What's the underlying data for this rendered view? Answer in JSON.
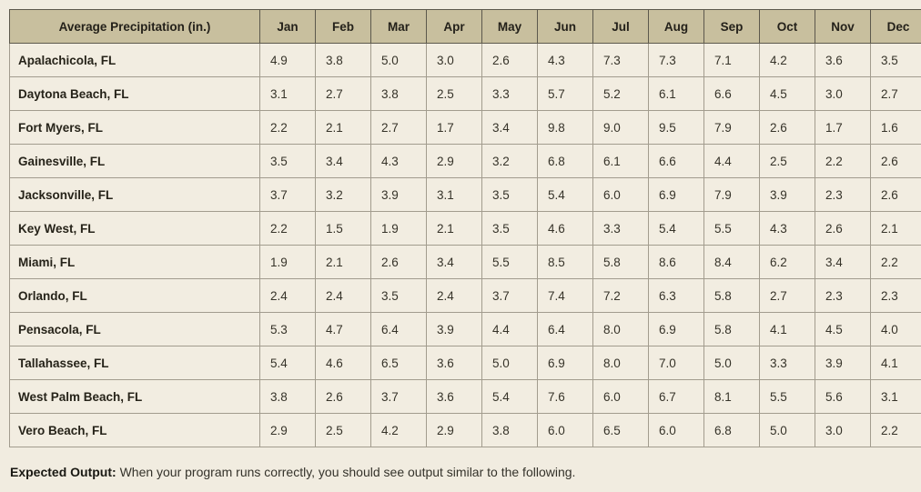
{
  "chart_data": {
    "type": "table",
    "header_label": "Average Precipitation (in.)",
    "months": [
      "Jan",
      "Feb",
      "Mar",
      "Apr",
      "May",
      "Jun",
      "Jul",
      "Aug",
      "Sep",
      "Oct",
      "Nov",
      "Dec"
    ],
    "rows": [
      {
        "city": "Apalachicola, FL",
        "values": [
          4.9,
          3.8,
          5.0,
          3.0,
          2.6,
          4.3,
          7.3,
          7.3,
          7.1,
          4.2,
          3.6,
          3.5
        ]
      },
      {
        "city": "Daytona Beach, FL",
        "values": [
          3.1,
          2.7,
          3.8,
          2.5,
          3.3,
          5.7,
          5.2,
          6.1,
          6.6,
          4.5,
          3.0,
          2.7
        ]
      },
      {
        "city": "Fort Myers, FL",
        "values": [
          2.2,
          2.1,
          2.7,
          1.7,
          3.4,
          9.8,
          9.0,
          9.5,
          7.9,
          2.6,
          1.7,
          1.6
        ]
      },
      {
        "city": "Gainesville, FL",
        "values": [
          3.5,
          3.4,
          4.3,
          2.9,
          3.2,
          6.8,
          6.1,
          6.6,
          4.4,
          2.5,
          2.2,
          2.6
        ]
      },
      {
        "city": "Jacksonville, FL",
        "values": [
          3.7,
          3.2,
          3.9,
          3.1,
          3.5,
          5.4,
          6.0,
          6.9,
          7.9,
          3.9,
          2.3,
          2.6
        ]
      },
      {
        "city": "Key West, FL",
        "values": [
          2.2,
          1.5,
          1.9,
          2.1,
          3.5,
          4.6,
          3.3,
          5.4,
          5.5,
          4.3,
          2.6,
          2.1
        ]
      },
      {
        "city": "Miami, FL",
        "values": [
          1.9,
          2.1,
          2.6,
          3.4,
          5.5,
          8.5,
          5.8,
          8.6,
          8.4,
          6.2,
          3.4,
          2.2
        ]
      },
      {
        "city": "Orlando, FL",
        "values": [
          2.4,
          2.4,
          3.5,
          2.4,
          3.7,
          7.4,
          7.2,
          6.3,
          5.8,
          2.7,
          2.3,
          2.3
        ]
      },
      {
        "city": "Pensacola, FL",
        "values": [
          5.3,
          4.7,
          6.4,
          3.9,
          4.4,
          6.4,
          8.0,
          6.9,
          5.8,
          4.1,
          4.5,
          4.0
        ]
      },
      {
        "city": "Tallahassee, FL",
        "values": [
          5.4,
          4.6,
          6.5,
          3.6,
          5.0,
          6.9,
          8.0,
          7.0,
          5.0,
          3.3,
          3.9,
          4.1
        ]
      },
      {
        "city": "West Palm Beach, FL",
        "values": [
          3.8,
          2.6,
          3.7,
          3.6,
          5.4,
          7.6,
          6.0,
          6.7,
          8.1,
          5.5,
          5.6,
          3.1
        ]
      },
      {
        "city": "Vero Beach, FL",
        "values": [
          2.9,
          2.5,
          4.2,
          2.9,
          3.8,
          6.0,
          6.5,
          6.0,
          6.8,
          5.0,
          3.0,
          2.2
        ]
      }
    ]
  },
  "footer": {
    "label": "Expected Output:",
    "text": "When your program runs correctly, you should see output similar to the following."
  },
  "colors": {
    "page_bg": "#f1ece0",
    "header_bg": "#c8bf9e",
    "cell_bg": "#f2ede1",
    "border_dark": "#5c584c",
    "border_light": "#a29c8e",
    "text": "#363329"
  }
}
